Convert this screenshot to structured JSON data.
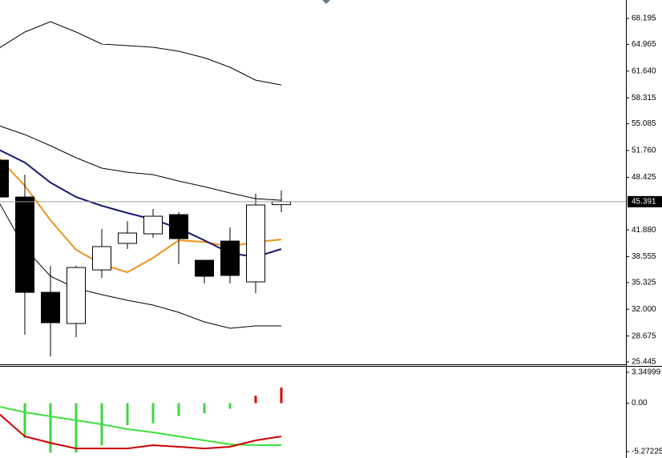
{
  "chart_data": [
    {
      "type": "candlestick",
      "open": [
        50.56,
        45.97,
        34.11,
        30.23,
        36.9,
        40.2,
        41.39,
        43.78,
        38.1,
        40.49,
        35.41,
        45.02
      ],
      "high": [
        51.05,
        48.76,
        37.4,
        37.4,
        41.99,
        42.98,
        44.48,
        44.08,
        38.1,
        42.18,
        46.37,
        46.77
      ],
      "low": [
        45.57,
        28.83,
        26.14,
        28.53,
        35.91,
        39.5,
        40.89,
        37.6,
        35.21,
        35.21,
        34.01,
        44.08
      ],
      "close": [
        45.97,
        34.11,
        30.33,
        37.2,
        39.8,
        41.49,
        43.58,
        40.79,
        36.11,
        36.21,
        44.98,
        45.391
      ],
      "up_color": "#ffffff",
      "down_color": "#000000",
      "series": [
        {
          "color": "#000000",
          "values": [
            64.51,
            66.5,
            67.8,
            66.5,
            65.01,
            64.81,
            64.61,
            64.11,
            63.31,
            62.12,
            60.52,
            59.92
          ]
        },
        {
          "color": "#000000",
          "values": [
            54.84,
            53.74,
            52.35,
            50.86,
            49.56,
            49.06,
            48.76,
            47.96,
            47.26,
            46.47,
            45.77,
            45.57
          ]
        },
        {
          "color": "#000000",
          "values": [
            45.27,
            39.6,
            36.11,
            34.61,
            33.82,
            33.12,
            32.52,
            31.62,
            30.43,
            29.63,
            29.93,
            29.93
          ]
        },
        {
          "color": "#f0901c",
          "values": [
            50.76,
            47.37,
            43.08,
            39.4,
            37.6,
            36.6,
            38.4,
            40.59,
            40.39,
            39.8,
            40.39,
            40.69
          ]
        },
        {
          "color": "#191970",
          "values": [
            51.85,
            50.26,
            47.77,
            45.97,
            44.88,
            43.98,
            43.18,
            42.08,
            40.59,
            38.99,
            38.5,
            39.5
          ]
        }
      ],
      "ylim": [
        25.15,
        70.49
      ],
      "yticks": [
        68.195,
        64.965,
        {
          "value": 61.64,
          "label": "61.640"
        },
        58.315,
        55.085,
        {
          "value": 51.76,
          "label": "51.760"
        },
        48.425,
        {
          "value": 41.88,
          "label": "41.880"
        },
        38.555,
        35.325,
        {
          "value": 32.0,
          "label": "32.000"
        },
        28.675,
        25.445
      ],
      "last_price": 45.391
    },
    {
      "type": "oscillator",
      "histogram": [
        null,
        -3.8,
        -5.4,
        -5.4,
        -4.6,
        -2.4,
        -2.2,
        -1.4,
        -1.1,
        -0.6,
        0.8,
        1.7
      ],
      "histogram_colors": [
        "#3dd63d",
        "#3dd63d",
        "#3dd63d",
        "#3dd63d",
        "#3dd63d",
        "#3dd63d",
        "#3dd63d",
        "#3dd63d",
        "#3dd63d",
        "#3dd63d",
        "#dd0000",
        "#dd0000"
      ],
      "series": [
        {
          "color": "#3de03d",
          "values": [
            -0.39,
            -1.0,
            -1.44,
            -1.87,
            -2.31,
            -2.83,
            -3.18,
            -3.62,
            -4.05,
            -4.49,
            -4.58,
            -4.58
          ]
        },
        {
          "color": "#cc0000",
          "values": [
            -1.18,
            -3.62,
            -4.32,
            -4.93,
            -4.93,
            -4.93,
            -4.58,
            -4.75,
            -4.93,
            -4.75,
            -4.05,
            -3.62
          ]
        }
      ],
      "ylim": [
        -5.97,
        3.96
      ],
      "yticks": [
        3.34999,
        {
          "value": 0,
          "label": "0.00"
        },
        -5.27225
      ]
    }
  ]
}
